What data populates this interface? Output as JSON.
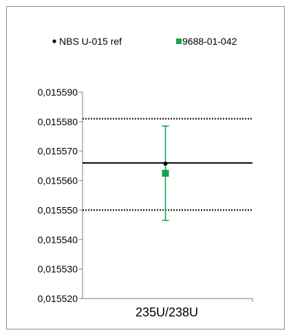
{
  "chart_data": {
    "type": "scatter",
    "categories": [
      "235U/238U"
    ],
    "ylim": [
      0.01552,
      0.01559
    ],
    "yticks": [
      0.01552,
      0.01553,
      0.01554,
      0.01555,
      0.01556,
      0.01557,
      0.01558,
      0.01559
    ],
    "ytick_labels": [
      "0,015520",
      "0,015530",
      "0,015540",
      "0,015550",
      "0,015560",
      "0,015570",
      "0,015580",
      "0,015590"
    ],
    "grid": false,
    "legend_position": "top",
    "reference": {
      "name": "NBS U-015 ref",
      "value": 0.015566,
      "lower": 0.01555,
      "upper": 0.015581,
      "color": "#000000"
    },
    "series": [
      {
        "name": "9688-01-042",
        "value": 0.0155625,
        "err_low": 0.0155465,
        "err_high": 0.0155785,
        "color": "#1aa14e"
      }
    ]
  }
}
